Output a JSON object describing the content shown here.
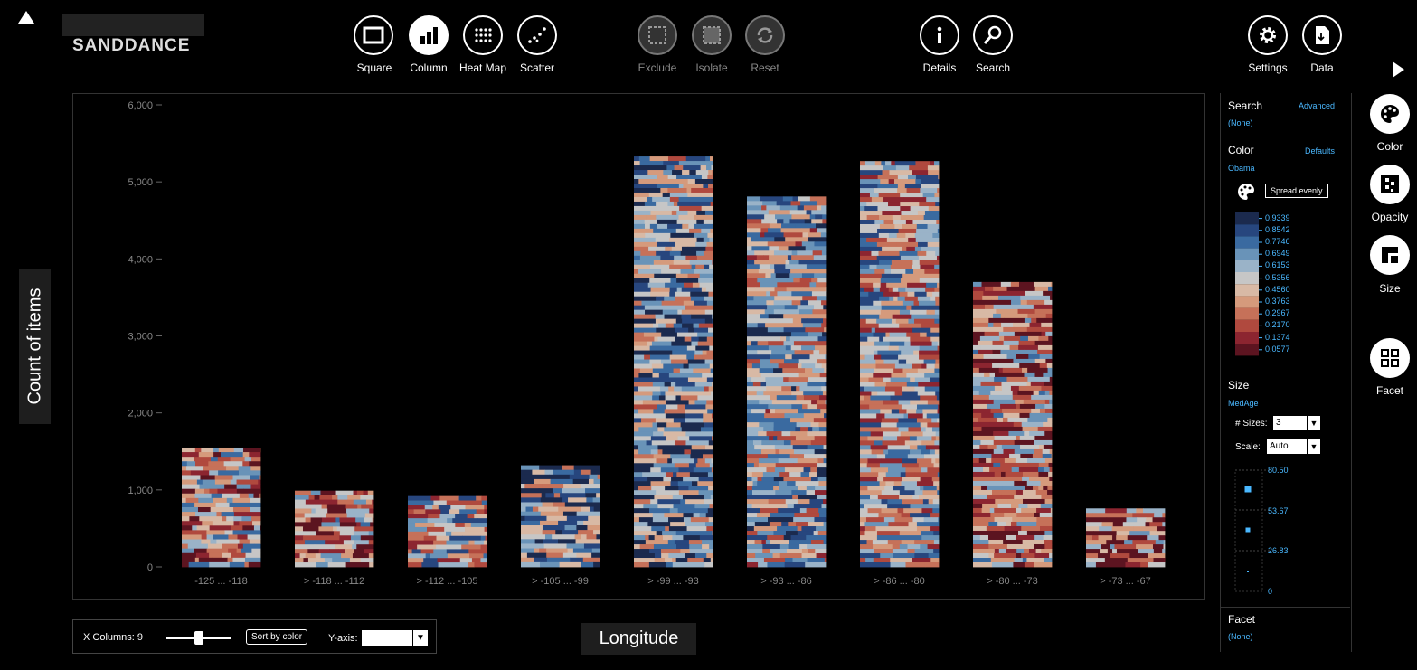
{
  "app": {
    "logo": "SANDDANCE"
  },
  "toolbar": {
    "views": [
      {
        "label": "Square",
        "icon": "square-icon"
      },
      {
        "label": "Column",
        "icon": "column-chart-icon"
      },
      {
        "label": "Heat Map",
        "icon": "heatmap-icon"
      },
      {
        "label": "Scatter",
        "icon": "scatter-icon"
      }
    ],
    "selection": [
      {
        "label": "Exclude",
        "icon": "exclude-icon"
      },
      {
        "label": "Isolate",
        "icon": "isolate-icon"
      },
      {
        "label": "Reset",
        "icon": "reset-icon"
      }
    ],
    "info": [
      {
        "label": "Details",
        "icon": "info-icon"
      },
      {
        "label": "Search",
        "icon": "search-icon"
      }
    ],
    "right": [
      {
        "label": "Settings",
        "icon": "gear-icon"
      },
      {
        "label": "Data",
        "icon": "data-file-icon"
      }
    ]
  },
  "side_buttons": [
    {
      "label": "Color",
      "icon": "palette-icon"
    },
    {
      "label": "Opacity",
      "icon": "opacity-icon"
    },
    {
      "label": "Size",
      "icon": "size-icon"
    },
    {
      "label": "Facet",
      "icon": "facet-icon"
    }
  ],
  "panel": {
    "search": {
      "title": "Search",
      "link": "Advanced",
      "value": "(None)"
    },
    "color": {
      "title": "Color",
      "link": "Defaults",
      "value": "Obama",
      "spread_button": "Spread evenly",
      "legend": [
        "0.9339",
        "0.8542",
        "0.7746",
        "0.6949",
        "0.6153",
        "0.5356",
        "0.4560",
        "0.3763",
        "0.2967",
        "0.2170",
        "0.1374",
        "0.0577"
      ],
      "swatches": [
        "#1b2a4e",
        "#27467e",
        "#3a6aa0",
        "#6993b8",
        "#9ab3c8",
        "#c6c6c6",
        "#d8b9a5",
        "#d59a7c",
        "#c67159",
        "#b0493e",
        "#8c2530",
        "#5c1420"
      ]
    },
    "size": {
      "title": "Size",
      "value": "MedAge",
      "num_sizes_label": "# Sizes:",
      "num_sizes": "3",
      "scale_label": "Scale:",
      "scale": "Auto",
      "legend": [
        "80.50",
        "53.67",
        "26.83",
        "0"
      ]
    },
    "facet": {
      "title": "Facet",
      "value": "(None)"
    }
  },
  "bottom": {
    "x_columns_label": "X Columns: 9",
    "sort_button": "Sort by color",
    "y_axis_label": "Y-axis:",
    "y_axis_value": ""
  },
  "chart_data": {
    "type": "bar",
    "xlabel": "Longitude",
    "ylabel": "Count of items",
    "ylim": [
      0,
      6000
    ],
    "yticks": [
      "0",
      "1,000",
      "2,000",
      "3,000",
      "4,000",
      "5,000",
      "6,000"
    ],
    "categories": [
      "-125 ... -118",
      "> -118 ... -112",
      "> -112 ... -105",
      "> -105 ... -99",
      "> -99 ... -93",
      "> -93 ... -86",
      "> -86 ... -80",
      "> -80 ... -73",
      "> -73 ... -67"
    ],
    "values": [
      1550,
      990,
      920,
      1320,
      5330,
      4810,
      5270,
      3700,
      760
    ]
  }
}
